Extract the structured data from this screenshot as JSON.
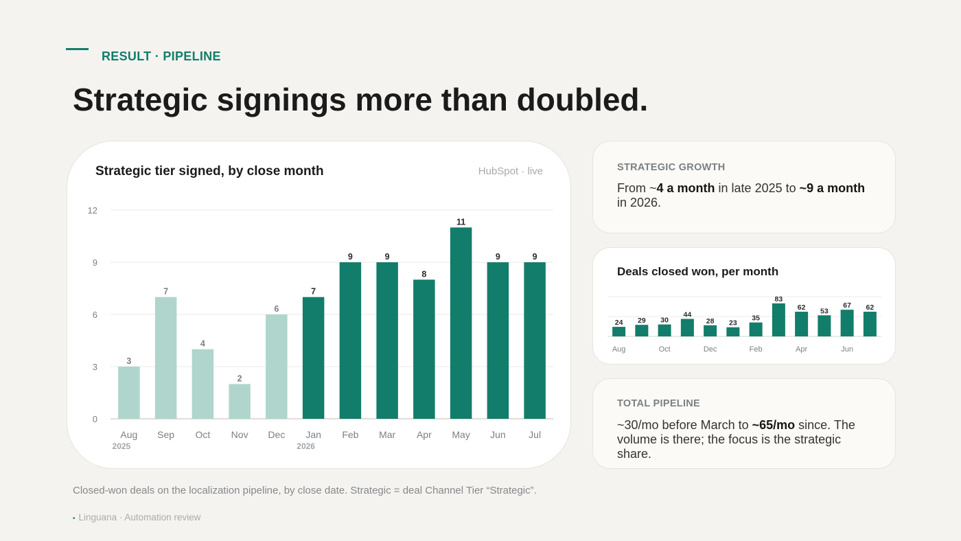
{
  "header": {
    "eyebrow": "RESULT · PIPELINE",
    "title": "Strategic signings more than doubled."
  },
  "main_card": {
    "title": "Strategic tier signed, by close month",
    "source": "HubSpot · live"
  },
  "chart_data": [
    {
      "type": "bar",
      "title": "Strategic tier signed, by close month",
      "categories": [
        "Aug",
        "Sep",
        "Oct",
        "Nov",
        "Dec",
        "Jan",
        "Feb",
        "Mar",
        "Apr",
        "May",
        "Jun",
        "Jul"
      ],
      "year_labels": [
        "2025",
        "",
        "",
        "",
        "",
        "2026",
        "",
        "",
        "",
        "",
        "",
        ""
      ],
      "values": [
        3,
        7,
        4,
        2,
        6,
        7,
        9,
        9,
        8,
        11,
        9,
        9
      ],
      "highlight": [
        false,
        false,
        false,
        false,
        false,
        true,
        true,
        true,
        true,
        true,
        true,
        true
      ],
      "yticks": [
        0,
        3,
        6,
        9,
        12
      ],
      "ylim": [
        0,
        12
      ],
      "grid": true,
      "colors": {
        "muted": "#b0d5cc",
        "highlight": "#127d6a",
        "muted_label": "#7b7f85",
        "highlight_label": "#2a2a2a"
      }
    },
    {
      "type": "bar",
      "title": "Deals closed won, per month",
      "categories": [
        "Aug",
        "Sep",
        "Oct",
        "Nov",
        "Dec",
        "Jan",
        "Feb",
        "Mar",
        "Apr",
        "May",
        "Jun",
        "Jul"
      ],
      "tick_labels": [
        "Aug",
        "",
        "Oct",
        "",
        "Dec",
        "",
        "Feb",
        "",
        "Apr",
        "",
        "Jun",
        ""
      ],
      "values": [
        24,
        29,
        30,
        44,
        28,
        23,
        35,
        83,
        62,
        53,
        67,
        62
      ],
      "ylim": [
        0,
        100
      ],
      "grid": true,
      "colors": {
        "bar": "#127d6a"
      }
    }
  ],
  "cards": {
    "strategic_growth": {
      "label": "STRATEGIC GROWTH",
      "pre": "From ~",
      "b1": "4 a month",
      "mid": " in late 2025 to ",
      "b2": "~9 a month",
      "post": " in 2026."
    },
    "deals": {
      "title": "Deals closed won, per month"
    },
    "total_pipeline": {
      "label": "TOTAL PIPELINE",
      "pre": "~30/mo before March to ",
      "b1": "~65/mo",
      "post": " since. The volume is there; the focus is the strategic share."
    }
  },
  "caption": "Closed-won deals on the localization pipeline, by close date.  Strategic = deal Channel Tier “Strategic”.",
  "footer": "Linguana · Automation review",
  "footer_dot": "•"
}
